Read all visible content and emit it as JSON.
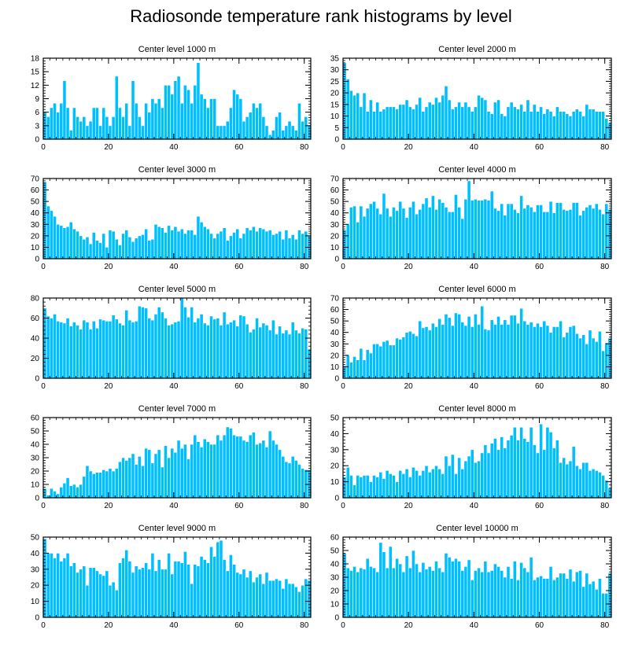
{
  "title": "Radiosonde temperature rank histograms by level",
  "colors": {
    "bar": "#00BFFF",
    "bar_edge": "#FFFFFF",
    "axis": "#000000",
    "background": "#FFFFFF"
  },
  "chart_data": [
    {
      "type": "bar",
      "title": "Center level 1000 m",
      "xlim": [
        0,
        82
      ],
      "ylim": [
        0,
        18
      ],
      "xticks": [
        0,
        20,
        40,
        60,
        80
      ],
      "yticks": [
        0,
        3,
        6,
        9,
        12,
        15,
        18
      ],
      "x_start": 0,
      "values": [
        6,
        5,
        7,
        8,
        6,
        8,
        13,
        7,
        2,
        7,
        5,
        4,
        5,
        3,
        4,
        7,
        7,
        3,
        7,
        5,
        3,
        5,
        14,
        7,
        5,
        8,
        3,
        13,
        8,
        5,
        3,
        8,
        6,
        9,
        8,
        9,
        7,
        12,
        12,
        10,
        13,
        14,
        8,
        12,
        11,
        8,
        12,
        17,
        10,
        9,
        7,
        9,
        9,
        3,
        3,
        3,
        4,
        7,
        11,
        10,
        9,
        4,
        5,
        6,
        8,
        7,
        8,
        5,
        3,
        1,
        2,
        5,
        6,
        2,
        3,
        4,
        3,
        2,
        8,
        4,
        5,
        3
      ]
    },
    {
      "type": "bar",
      "title": "Center level 2000 m",
      "xlim": [
        0,
        82
      ],
      "ylim": [
        0,
        35
      ],
      "xticks": [
        0,
        20,
        40,
        60,
        80
      ],
      "yticks": [
        0,
        5,
        10,
        15,
        20,
        25,
        30,
        35
      ],
      "x_start": 0,
      "values": [
        33,
        26,
        21,
        19,
        20,
        14,
        20,
        12,
        17,
        12,
        16,
        12,
        13,
        14,
        14,
        14,
        13,
        15,
        15,
        17,
        14,
        13,
        15,
        18,
        12,
        14,
        16,
        15,
        18,
        16,
        19,
        23,
        17,
        13,
        14,
        16,
        14,
        16,
        14,
        12,
        14,
        19,
        18,
        17,
        12,
        11,
        16,
        17,
        11,
        10,
        14,
        16,
        14,
        13,
        15,
        12,
        17,
        12,
        15,
        12,
        14,
        11,
        13,
        12,
        10,
        14,
        12,
        12,
        11,
        10,
        12,
        13,
        12,
        10,
        15,
        13,
        13,
        12,
        12,
        12,
        9,
        7
      ]
    },
    {
      "type": "bar",
      "title": "Center level 3000 m",
      "xlim": [
        0,
        82
      ],
      "ylim": [
        0,
        70
      ],
      "xticks": [
        0,
        20,
        40,
        60,
        80
      ],
      "yticks": [
        0,
        10,
        20,
        30,
        40,
        50,
        60,
        70
      ],
      "x_start": 0,
      "values": [
        67,
        46,
        42,
        37,
        30,
        29,
        27,
        28,
        32,
        26,
        24,
        20,
        17,
        19,
        13,
        23,
        16,
        14,
        22,
        10,
        25,
        24,
        17,
        12,
        22,
        25,
        19,
        15,
        18,
        20,
        21,
        26,
        16,
        17,
        30,
        28,
        27,
        23,
        29,
        25,
        28,
        24,
        26,
        22,
        25,
        25,
        21,
        37,
        32,
        28,
        26,
        22,
        18,
        22,
        24,
        27,
        16,
        20,
        23,
        26,
        18,
        22,
        27,
        25,
        28,
        24,
        27,
        26,
        24,
        25,
        21,
        22,
        24,
        17,
        25,
        18,
        21,
        17,
        25,
        22,
        24,
        20
      ]
    },
    {
      "type": "bar",
      "title": "Center level 4000 m",
      "xlim": [
        0,
        82
      ],
      "ylim": [
        0,
        70
      ],
      "xticks": [
        0,
        20,
        40,
        60,
        80
      ],
      "yticks": [
        0,
        10,
        20,
        30,
        40,
        50,
        60,
        70
      ],
      "x_start": 0,
      "values": [
        25,
        30,
        45,
        46,
        32,
        46,
        37,
        44,
        48,
        50,
        44,
        39,
        57,
        44,
        37,
        45,
        42,
        50,
        44,
        36,
        45,
        50,
        39,
        43,
        48,
        53,
        45,
        55,
        43,
        52,
        49,
        45,
        41,
        41,
        56,
        45,
        35,
        52,
        68,
        51,
        52,
        51,
        51,
        52,
        51,
        59,
        44,
        42,
        48,
        38,
        48,
        48,
        43,
        40,
        55,
        44,
        47,
        45,
        41,
        47,
        47,
        41,
        41,
        50,
        40,
        49,
        49,
        43,
        42,
        43,
        49,
        49,
        38,
        42,
        45,
        47,
        44,
        48,
        43,
        39,
        48,
        43
      ]
    },
    {
      "type": "bar",
      "title": "Center level 5000 m",
      "xlim": [
        0,
        82
      ],
      "ylim": [
        0,
        80
      ],
      "xticks": [
        0,
        20,
        40,
        60,
        80
      ],
      "yticks": [
        0,
        20,
        40,
        60,
        80
      ],
      "x_start": 0,
      "values": [
        70,
        62,
        60,
        64,
        57,
        56,
        55,
        60,
        52,
        56,
        53,
        49,
        58,
        56,
        49,
        57,
        50,
        59,
        58,
        57,
        57,
        63,
        59,
        55,
        53,
        68,
        58,
        56,
        57,
        72,
        71,
        70,
        60,
        58,
        64,
        71,
        66,
        60,
        53,
        54,
        56,
        57,
        80,
        71,
        61,
        71,
        56,
        60,
        64,
        55,
        53,
        62,
        59,
        60,
        53,
        66,
        54,
        56,
        58,
        52,
        63,
        62,
        54,
        46,
        49,
        60,
        51,
        55,
        53,
        48,
        58,
        44,
        52,
        45,
        48,
        44,
        56,
        48,
        45,
        50,
        49,
        29
      ]
    },
    {
      "type": "bar",
      "title": "Center level 6000 m",
      "xlim": [
        0,
        82
      ],
      "ylim": [
        0,
        70
      ],
      "xticks": [
        0,
        20,
        40,
        60,
        80
      ],
      "yticks": [
        0,
        10,
        20,
        30,
        40,
        50,
        60,
        70
      ],
      "x_start": 0,
      "values": [
        11,
        20,
        14,
        19,
        16,
        26,
        16,
        25,
        22,
        30,
        30,
        28,
        32,
        33,
        29,
        29,
        35,
        34,
        36,
        40,
        41,
        39,
        37,
        50,
        44,
        45,
        42,
        48,
        45,
        52,
        47,
        56,
        53,
        46,
        57,
        56,
        49,
        46,
        54,
        45,
        56,
        47,
        63,
        43,
        42,
        51,
        47,
        54,
        47,
        51,
        47,
        55,
        55,
        48,
        61,
        50,
        47,
        49,
        45,
        48,
        45,
        50,
        46,
        40,
        45,
        45,
        50,
        36,
        40,
        45,
        46,
        39,
        35,
        38,
        30,
        42,
        35,
        32,
        41,
        24,
        31,
        35
      ]
    },
    {
      "type": "bar",
      "title": "Center level 7000 m",
      "xlim": [
        0,
        82
      ],
      "ylim": [
        0,
        60
      ],
      "xticks": [
        0,
        20,
        40,
        60,
        80
      ],
      "yticks": [
        0,
        10,
        20,
        30,
        40,
        50,
        60
      ],
      "x_start": 0,
      "values": [
        7,
        2,
        7,
        5,
        3,
        8,
        11,
        15,
        9,
        10,
        8,
        10,
        16,
        24,
        20,
        18,
        19,
        19,
        21,
        20,
        22,
        20,
        22,
        27,
        30,
        28,
        30,
        33,
        25,
        31,
        24,
        37,
        36,
        26,
        33,
        36,
        23,
        39,
        30,
        37,
        34,
        43,
        37,
        40,
        29,
        40,
        47,
        42,
        38,
        44,
        42,
        40,
        40,
        47,
        43,
        47,
        53,
        52,
        47,
        46,
        46,
        43,
        42,
        47,
        49,
        40,
        41,
        43,
        38,
        50,
        43,
        40,
        36,
        31,
        27,
        26,
        31,
        28,
        25,
        22,
        21,
        21
      ]
    },
    {
      "type": "bar",
      "title": "Center level 8000 m",
      "xlim": [
        0,
        82
      ],
      "ylim": [
        0,
        50
      ],
      "xticks": [
        0,
        20,
        40,
        60,
        80
      ],
      "yticks": [
        0,
        10,
        20,
        30,
        40,
        50
      ],
      "x_start": 0,
      "values": [
        13,
        19,
        14,
        8,
        14,
        13,
        14,
        14,
        10,
        14,
        13,
        16,
        12,
        17,
        15,
        14,
        10,
        17,
        15,
        18,
        13,
        19,
        17,
        14,
        17,
        20,
        16,
        18,
        20,
        18,
        15,
        26,
        20,
        27,
        15,
        25,
        18,
        23,
        26,
        30,
        22,
        23,
        28,
        33,
        28,
        34,
        37,
        30,
        38,
        31,
        36,
        39,
        44,
        36,
        44,
        37,
        35,
        44,
        33,
        28,
        46,
        30,
        44,
        41,
        31,
        36,
        22,
        25,
        21,
        23,
        32,
        20,
        18,
        22,
        22,
        17,
        18,
        17,
        16,
        14,
        11,
        6
      ]
    },
    {
      "type": "bar",
      "title": "Center level 9000 m",
      "xlim": [
        0,
        82
      ],
      "ylim": [
        0,
        50
      ],
      "xticks": [
        0,
        20,
        40,
        60,
        80
      ],
      "yticks": [
        0,
        10,
        20,
        30,
        40,
        50
      ],
      "x_start": 0,
      "values": [
        49,
        40,
        40,
        37,
        40,
        35,
        37,
        40,
        32,
        34,
        28,
        30,
        32,
        20,
        31,
        31,
        29,
        27,
        26,
        29,
        20,
        22,
        17,
        34,
        37,
        42,
        35,
        28,
        32,
        30,
        31,
        34,
        30,
        40,
        29,
        36,
        30,
        30,
        40,
        27,
        35,
        35,
        34,
        41,
        33,
        21,
        33,
        32,
        38,
        36,
        34,
        44,
        38,
        47,
        48,
        36,
        29,
        39,
        33,
        28,
        27,
        30,
        25,
        29,
        22,
        25,
        27,
        21,
        28,
        23,
        23,
        24,
        23,
        18,
        24,
        21,
        21,
        19,
        16,
        20,
        24,
        23
      ]
    },
    {
      "type": "bar",
      "title": "Center level 10000 m",
      "xlim": [
        0,
        82
      ],
      "ylim": [
        0,
        60
      ],
      "xticks": [
        0,
        20,
        40,
        60,
        80
      ],
      "yticks": [
        0,
        10,
        20,
        30,
        40,
        50,
        60
      ],
      "x_start": 0,
      "values": [
        48,
        37,
        35,
        38,
        34,
        37,
        36,
        44,
        38,
        37,
        34,
        56,
        49,
        37,
        53,
        37,
        44,
        40,
        34,
        46,
        37,
        50,
        40,
        34,
        41,
        36,
        38,
        35,
        42,
        37,
        34,
        48,
        45,
        42,
        44,
        42,
        35,
        38,
        43,
        28,
        35,
        37,
        34,
        42,
        34,
        35,
        40,
        38,
        35,
        30,
        38,
        29,
        42,
        28,
        41,
        37,
        34,
        45,
        28,
        30,
        31,
        29,
        29,
        38,
        28,
        30,
        33,
        33,
        29,
        36,
        27,
        34,
        35,
        23,
        33,
        25,
        27,
        21,
        29,
        18,
        18,
        33
      ]
    }
  ]
}
